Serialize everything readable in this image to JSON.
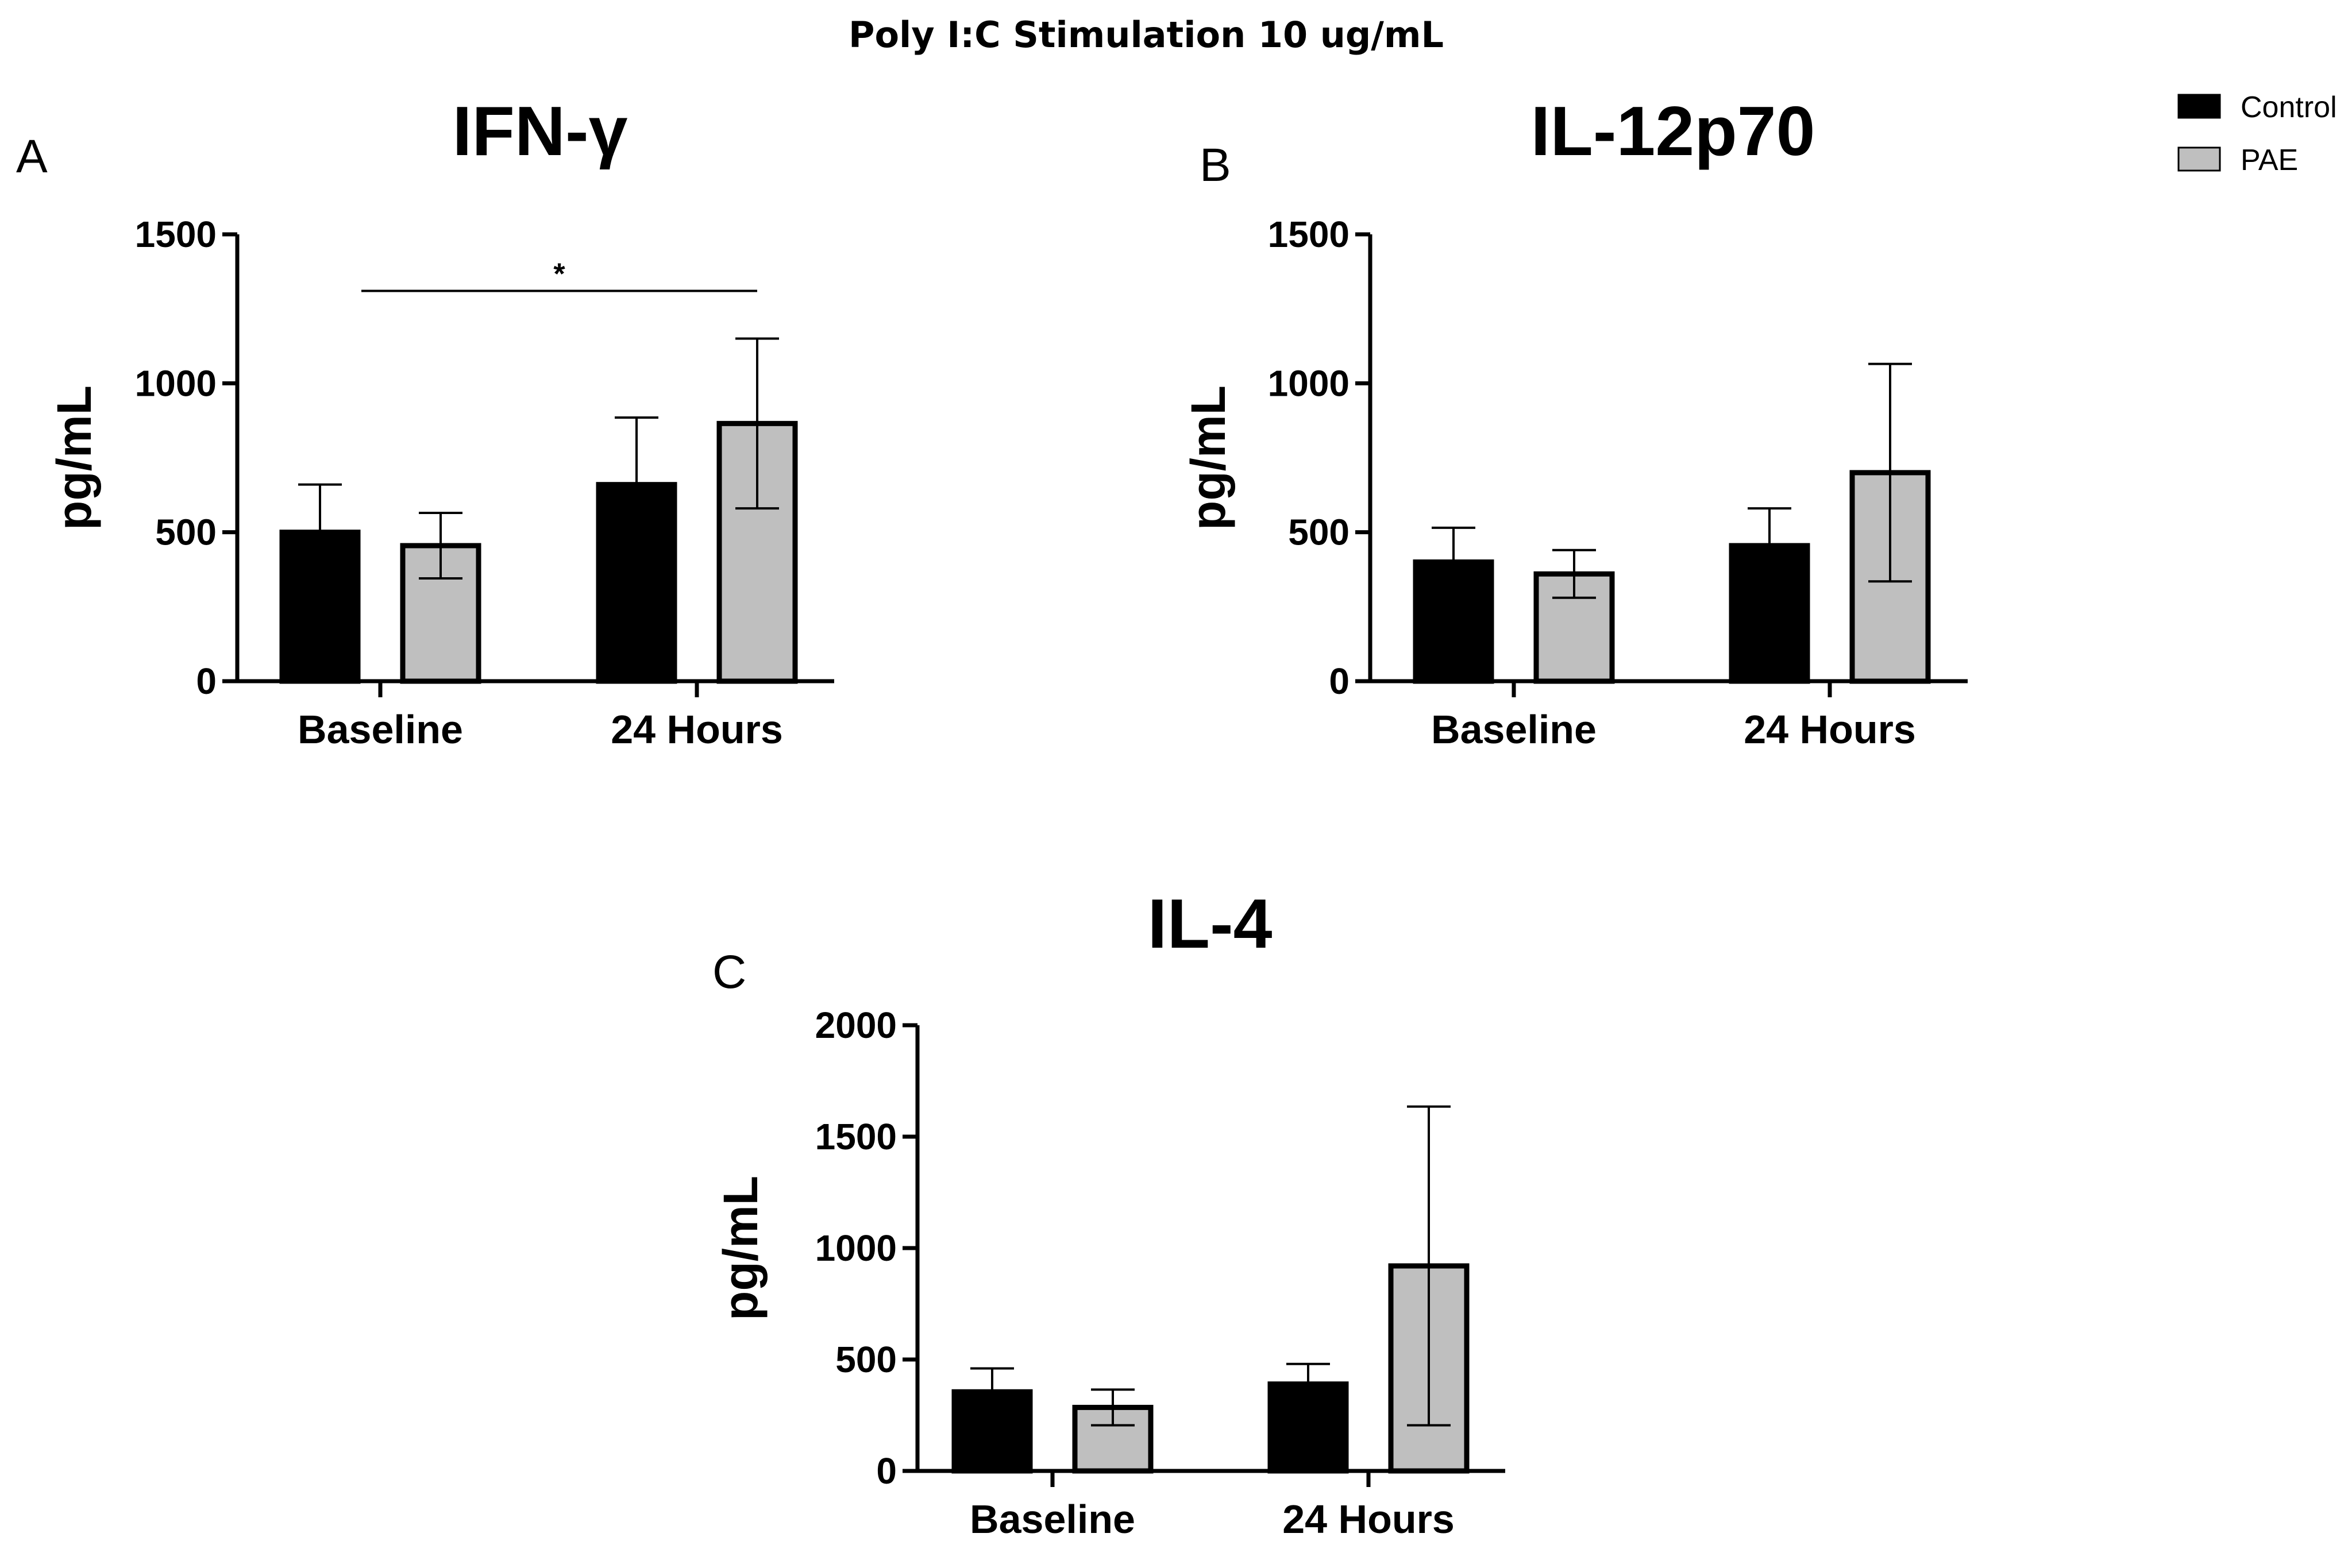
{
  "figure": {
    "title": "Poly I:C Stimulation 10 ug/mL",
    "legend": [
      {
        "label": "Control",
        "color": "#000000"
      },
      {
        "label": "PAE",
        "color": "#bfbfbf"
      }
    ]
  },
  "chart_data": [
    {
      "type": "bar",
      "panel": "A",
      "title": "IFN-γ",
      "ylabel": "pg/mL",
      "xlabel": "",
      "categories": [
        "Baseline",
        "24 Hours"
      ],
      "ylim": [
        0,
        1500
      ],
      "yticks": [
        0,
        500,
        1000,
        1500
      ],
      "series": [
        {
          "name": "Control",
          "color": "#000000",
          "values": [
            500,
            660
          ],
          "error": [
            160,
            225
          ]
        },
        {
          "name": "PAE",
          "color": "#bfbfbf",
          "values": [
            455,
            865
          ],
          "error": [
            110,
            285
          ]
        }
      ],
      "annotations": [
        {
          "text": "*",
          "from": "Baseline",
          "to": "24 Hours",
          "y": 1310
        }
      ],
      "grid": false
    },
    {
      "type": "bar",
      "panel": "B",
      "title": "IL-12p70",
      "ylabel": "pg/mL",
      "xlabel": "",
      "categories": [
        "Baseline",
        "24 Hours"
      ],
      "ylim": [
        0,
        1500
      ],
      "yticks": [
        0,
        500,
        1000,
        1500
      ],
      "series": [
        {
          "name": "Control",
          "color": "#000000",
          "values": [
            400,
            455
          ],
          "error": [
            115,
            125
          ]
        },
        {
          "name": "PAE",
          "color": "#bfbfbf",
          "values": [
            360,
            700
          ],
          "error": [
            80,
            365
          ]
        }
      ],
      "annotations": [],
      "grid": false
    },
    {
      "type": "bar",
      "panel": "C",
      "title": "IL-4",
      "ylabel": "pg/mL",
      "xlabel": "",
      "categories": [
        "Baseline",
        "24 Hours"
      ],
      "ylim": [
        0,
        2000
      ],
      "yticks": [
        0,
        500,
        1000,
        1500,
        2000
      ],
      "series": [
        {
          "name": "Control",
          "color": "#000000",
          "values": [
            355,
            390
          ],
          "error": [
            105,
            90
          ]
        },
        {
          "name": "PAE",
          "color": "#bfbfbf",
          "values": [
            285,
            920
          ],
          "error": [
            80,
            715
          ]
        }
      ],
      "annotations": [],
      "grid": false
    }
  ]
}
